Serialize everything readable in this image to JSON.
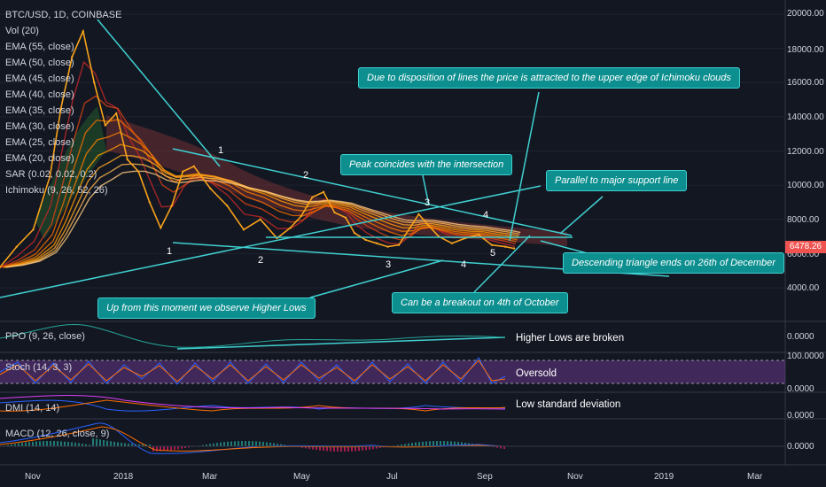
{
  "chart_data": {
    "type": "line",
    "title": "BTC/USD, 1D, COINBASE",
    "indicators": [
      "Vol (20)",
      "EMA (55, close)",
      "EMA (50, close)",
      "EMA (45, close)",
      "EMA (40, close)",
      "EMA (35, close)",
      "EMA (30, close)",
      "EMA (25, close)",
      "EMA (20, close)",
      "SAR (0.02, 0.02, 0.2)",
      "Ichimoku (9, 26, 52, 26)"
    ],
    "price_ticks": [
      "20000.00",
      "18000.00",
      "16000.00",
      "14000.00",
      "12000.00",
      "10000.00",
      "8000.00",
      "6000.00",
      "4000.00"
    ],
    "ylim": [
      2400,
      21000
    ],
    "x_ticks": [
      "Nov",
      "2018",
      "Mar",
      "May",
      "Jul",
      "Sep",
      "Nov",
      "2019",
      "Mar"
    ],
    "current_price": "6478.26",
    "series": [
      {
        "name": "Price",
        "color": "#f7a21b",
        "points": [
          [
            0,
            5200
          ],
          [
            15,
            6400
          ],
          [
            30,
            7400
          ],
          [
            45,
            10500
          ],
          [
            55,
            14500
          ],
          [
            65,
            17500
          ],
          [
            75,
            19000
          ],
          [
            85,
            16000
          ],
          [
            95,
            13500
          ],
          [
            105,
            14200
          ],
          [
            115,
            11500
          ],
          [
            125,
            10800
          ],
          [
            135,
            9000
          ],
          [
            145,
            7500
          ],
          [
            155,
            8800
          ],
          [
            165,
            10800
          ],
          [
            175,
            11100
          ],
          [
            190,
            9800
          ],
          [
            205,
            8800
          ],
          [
            220,
            7400
          ],
          [
            235,
            8000
          ],
          [
            250,
            6900
          ],
          [
            262,
            7500
          ],
          [
            272,
            8200
          ],
          [
            282,
            9300
          ],
          [
            292,
            9600
          ],
          [
            302,
            8400
          ],
          [
            312,
            8100
          ],
          [
            320,
            7200
          ],
          [
            330,
            6800
          ],
          [
            340,
            6600
          ],
          [
            350,
            6400
          ],
          [
            360,
            6500
          ],
          [
            370,
            7500
          ],
          [
            378,
            8300
          ],
          [
            386,
            7700
          ],
          [
            396,
            7000
          ],
          [
            408,
            6600
          ],
          [
            420,
            6900
          ],
          [
            432,
            7100
          ],
          [
            444,
            6500
          ],
          [
            456,
            6400
          ],
          [
            464,
            6300
          ]
        ]
      }
    ],
    "sub_panels": [
      "PPO (9, 26, close)",
      "Stoch (14, 3, 3)",
      "DMI (14, 14)",
      "MACD (12, 26, close, 9)"
    ],
    "sub_axis": {
      "ppo": [
        "0.0000"
      ],
      "stoch": [
        "100.0000",
        "0.0000"
      ],
      "dmi": [
        "0.0000"
      ],
      "macd": [
        "0.0000"
      ]
    },
    "wave_labels": [
      "1",
      "1",
      "2",
      "2",
      "3",
      "3",
      "4",
      "4",
      "5"
    ],
    "callouts": {
      "attracted": "Due to disposition of lines the price is attracted to the upper edge of Ichimoku clouds",
      "peak": "Peak coincides with the intersection",
      "parallel": "Parallel to major support line",
      "descending": "Descending triangle ends on 26th of December",
      "breakout": "Can be a breakout on 4th of October",
      "higher_lows": "Up from this moment we observe Higher Lows"
    },
    "notes": {
      "higher_lows_broken": "Higher Lows are broken",
      "oversold": "Oversold",
      "low_std": "Low standard deviation"
    },
    "colors": {
      "background": "#131722",
      "trendline": "#3fd0d0",
      "callout": "#0d8f8f",
      "stoch_band": "#7b3fa0",
      "price_tag": "#ef5350"
    }
  }
}
